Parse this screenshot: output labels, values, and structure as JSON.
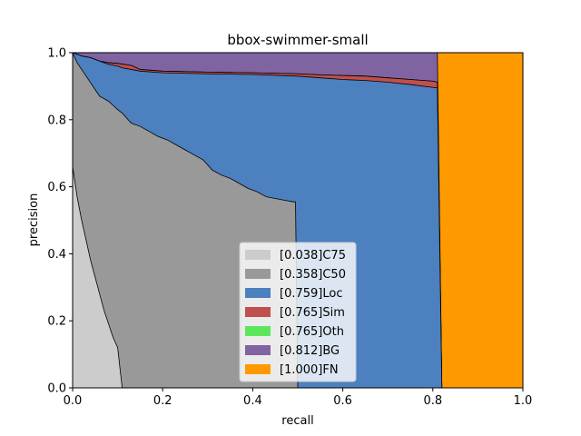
{
  "chart_data": {
    "type": "area",
    "title": "bbox-swimmer-small",
    "xlabel": "recall",
    "ylabel": "precision",
    "xlim": [
      0,
      1
    ],
    "ylim": [
      0,
      1
    ],
    "xticks": [
      "0.0",
      "0.2",
      "0.4",
      "0.6",
      "0.8",
      "1.0"
    ],
    "yticks": [
      "0.0",
      "0.2",
      "0.4",
      "0.6",
      "0.8",
      "1.0"
    ],
    "legend_position": "lower-center",
    "series": [
      {
        "label": "[0.038]C75",
        "color": "#cccccc",
        "points": [
          [
            0,
            0.66
          ],
          [
            0.01,
            0.57
          ],
          [
            0.02,
            0.5
          ],
          [
            0.03,
            0.44
          ],
          [
            0.04,
            0.38
          ],
          [
            0.05,
            0.33
          ],
          [
            0.06,
            0.28
          ],
          [
            0.07,
            0.23
          ],
          [
            0.08,
            0.19
          ],
          [
            0.09,
            0.15
          ],
          [
            0.1,
            0.12
          ],
          [
            0.11,
            0.0
          ]
        ]
      },
      {
        "label": "[0.358]C50",
        "color": "#999999",
        "points": [
          [
            0,
            1.0
          ],
          [
            0.01,
            0.97
          ],
          [
            0.02,
            0.95
          ],
          [
            0.03,
            0.93
          ],
          [
            0.04,
            0.91
          ],
          [
            0.05,
            0.89
          ],
          [
            0.06,
            0.87
          ],
          [
            0.08,
            0.855
          ],
          [
            0.1,
            0.83
          ],
          [
            0.11,
            0.82
          ],
          [
            0.13,
            0.79
          ],
          [
            0.15,
            0.78
          ],
          [
            0.17,
            0.765
          ],
          [
            0.19,
            0.75
          ],
          [
            0.21,
            0.74
          ],
          [
            0.23,
            0.725
          ],
          [
            0.25,
            0.71
          ],
          [
            0.27,
            0.695
          ],
          [
            0.29,
            0.68
          ],
          [
            0.31,
            0.65
          ],
          [
            0.33,
            0.635
          ],
          [
            0.35,
            0.625
          ],
          [
            0.37,
            0.61
          ],
          [
            0.39,
            0.595
          ],
          [
            0.41,
            0.585
          ],
          [
            0.43,
            0.57
          ],
          [
            0.45,
            0.565
          ],
          [
            0.47,
            0.56
          ],
          [
            0.49,
            0.555
          ],
          [
            0.495,
            0.555
          ],
          [
            0.5,
            0.0
          ]
        ]
      },
      {
        "label": "[0.759]Loc",
        "color": "#4c80bf",
        "points": [
          [
            0,
            1.0
          ],
          [
            0.02,
            0.99
          ],
          [
            0.04,
            0.985
          ],
          [
            0.06,
            0.975
          ],
          [
            0.08,
            0.965
          ],
          [
            0.1,
            0.96
          ],
          [
            0.11,
            0.955
          ],
          [
            0.13,
            0.95
          ],
          [
            0.15,
            0.945
          ],
          [
            0.2,
            0.94
          ],
          [
            0.3,
            0.937
          ],
          [
            0.4,
            0.935
          ],
          [
            0.5,
            0.93
          ],
          [
            0.55,
            0.925
          ],
          [
            0.6,
            0.92
          ],
          [
            0.65,
            0.917
          ],
          [
            0.7,
            0.912
          ],
          [
            0.75,
            0.905
          ],
          [
            0.79,
            0.898
          ],
          [
            0.81,
            0.895
          ],
          [
            0.82,
            0.0
          ]
        ]
      },
      {
        "label": "[0.765]Sim",
        "color": "#c0504d",
        "points": [
          [
            0,
            1.0
          ],
          [
            0.02,
            0.99
          ],
          [
            0.04,
            0.985
          ],
          [
            0.06,
            0.975
          ],
          [
            0.08,
            0.97
          ],
          [
            0.1,
            0.968
          ],
          [
            0.13,
            0.962
          ],
          [
            0.15,
            0.95
          ],
          [
            0.2,
            0.945
          ],
          [
            0.3,
            0.942
          ],
          [
            0.4,
            0.94
          ],
          [
            0.5,
            0.937
          ],
          [
            0.55,
            0.934
          ],
          [
            0.6,
            0.932
          ],
          [
            0.65,
            0.93
          ],
          [
            0.7,
            0.925
          ],
          [
            0.75,
            0.92
          ],
          [
            0.8,
            0.915
          ],
          [
            0.81,
            0.912
          ],
          [
            0.82,
            0.0
          ]
        ]
      },
      {
        "label": "[0.765]Oth",
        "color": "#5de65d",
        "points": [
          [
            0,
            1.0
          ],
          [
            0.02,
            0.99
          ],
          [
            0.04,
            0.985
          ],
          [
            0.06,
            0.975
          ],
          [
            0.08,
            0.97
          ],
          [
            0.1,
            0.968
          ],
          [
            0.13,
            0.962
          ],
          [
            0.15,
            0.95
          ],
          [
            0.2,
            0.945
          ],
          [
            0.3,
            0.942
          ],
          [
            0.4,
            0.94
          ],
          [
            0.5,
            0.937
          ],
          [
            0.55,
            0.934
          ],
          [
            0.6,
            0.932
          ],
          [
            0.65,
            0.93
          ],
          [
            0.7,
            0.925
          ],
          [
            0.75,
            0.92
          ],
          [
            0.8,
            0.915
          ],
          [
            0.81,
            0.912
          ],
          [
            0.82,
            0.0
          ]
        ]
      },
      {
        "label": "[0.812]BG",
        "color": "#8064a2",
        "points": [
          [
            0,
            1.0
          ],
          [
            0.81,
            1.0
          ],
          [
            0.82,
            0.0
          ]
        ]
      },
      {
        "label": "[1.000]FN",
        "color": "#ff9900",
        "points": [
          [
            0,
            1.0
          ],
          [
            1.0,
            1.0
          ],
          [
            1.0,
            0.0
          ]
        ]
      }
    ]
  }
}
